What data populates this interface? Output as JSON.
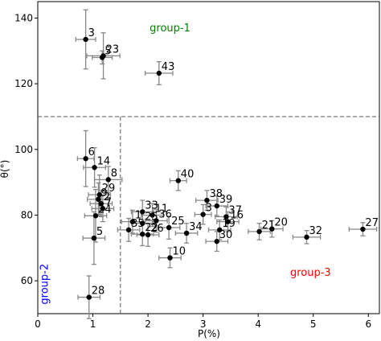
{
  "chart_data": {
    "type": "scatter",
    "xlabel": "P(%)",
    "ylabel": "θ(°)",
    "xlim": [
      0,
      6.2
    ],
    "ylim": [
      50,
      145
    ],
    "xticks": [
      0,
      1,
      2,
      3,
      4,
      5,
      6
    ],
    "yticks": [
      60,
      80,
      100,
      120,
      140
    ],
    "grid": false,
    "divider_lines": {
      "vertical_x": 1.5,
      "horizontal_y": 110
    },
    "group_labels": [
      {
        "text": "group-1",
        "color": "#008000",
        "x": 2.4,
        "y": 136
      },
      {
        "text": "group-2",
        "color": "#0000ff",
        "x": 0.18,
        "y": 59,
        "rotated": true
      },
      {
        "text": "group-3",
        "color": "#ff0000",
        "x": 4.95,
        "y": 61.5
      }
    ],
    "points": [
      {
        "label": "3",
        "x": 0.87,
        "y": 133.5,
        "xerr": 0.18,
        "yerr": 9.0
      },
      {
        "label": "23",
        "x": 1.19,
        "y": 128.5,
        "xerr": 0.3,
        "yerr": 7.0
      },
      {
        "label": "5",
        "x": 1.17,
        "y": 128.0,
        "xerr": 0.18,
        "yerr": 2.0
      },
      {
        "label": "43",
        "x": 2.2,
        "y": 123.2,
        "xerr": 0.25,
        "yerr": 3.5
      },
      {
        "label": "6",
        "x": 0.87,
        "y": 97.2,
        "xerr": 0.15,
        "yerr": 8.5
      },
      {
        "label": "14",
        "x": 1.03,
        "y": 94.5,
        "xerr": 0.2,
        "yerr": 6.0
      },
      {
        "label": "8",
        "x": 1.28,
        "y": 90.8,
        "xerr": 0.25,
        "yerr": 4.0
      },
      {
        "label": "40",
        "x": 2.55,
        "y": 90.5,
        "xerr": 0.15,
        "yerr": 3.0
      },
      {
        "label": "29",
        "x": 1.12,
        "y": 86.2,
        "xerr": 0.2,
        "yerr": 6.0
      },
      {
        "label": "9",
        "x": 1.1,
        "y": 84.8,
        "xerr": 0.2,
        "yerr": 5.0
      },
      {
        "label": "2",
        "x": 1.15,
        "y": 83.5,
        "xerr": 0.2,
        "yerr": 4.0
      },
      {
        "label": "7",
        "x": 1.18,
        "y": 82.0,
        "xerr": 0.2,
        "yerr": 4.0
      },
      {
        "label": "24",
        "x": 1.05,
        "y": 79.8,
        "xerr": 0.2,
        "yerr": 8.0
      },
      {
        "label": "5",
        "x": 1.02,
        "y": 73.0,
        "xerr": 0.2,
        "yerr": 8.0
      },
      {
        "label": "28",
        "x": 0.93,
        "y": 55.0,
        "xerr": 0.2,
        "yerr": 6.5
      },
      {
        "label": "38",
        "x": 3.07,
        "y": 84.5,
        "xerr": 0.2,
        "yerr": 3.0
      },
      {
        "label": "39",
        "x": 3.25,
        "y": 82.8,
        "xerr": 0.2,
        "yerr": 3.0
      },
      {
        "label": "3",
        "x": 3.0,
        "y": 80.2,
        "xerr": 0.15,
        "yerr": 3.0
      },
      {
        "label": "37",
        "x": 3.42,
        "y": 79.5,
        "xerr": 0.2,
        "yerr": 3.0
      },
      {
        "label": "16",
        "x": 3.45,
        "y": 78.0,
        "xerr": 0.2,
        "yerr": 3.0
      },
      {
        "label": "19",
        "x": 3.3,
        "y": 75.5,
        "xerr": 0.2,
        "yerr": 3.0
      },
      {
        "label": "30",
        "x": 3.25,
        "y": 72.0,
        "xerr": 0.2,
        "yerr": 3.0
      },
      {
        "label": "33",
        "x": 1.9,
        "y": 81.0,
        "xerr": 0.2,
        "yerr": 3.5
      },
      {
        "label": "11",
        "x": 2.08,
        "y": 80.0,
        "xerr": 0.2,
        "yerr": 3.5
      },
      {
        "label": "1",
        "x": 1.72,
        "y": 78.0,
        "xerr": 0.2,
        "yerr": 3.5
      },
      {
        "label": "36",
        "x": 2.15,
        "y": 78.3,
        "xerr": 0.2,
        "yerr": 3.5
      },
      {
        "label": "25",
        "x": 1.9,
        "y": 77.5,
        "xerr": 0.2,
        "yerr": 3.5
      },
      {
        "label": "25",
        "x": 2.38,
        "y": 76.2,
        "xerr": 0.2,
        "yerr": 3.5
      },
      {
        "label": "35",
        "x": 1.65,
        "y": 75.5,
        "xerr": 0.2,
        "yerr": 3.5
      },
      {
        "label": "22",
        "x": 1.9,
        "y": 74.2,
        "xerr": 0.2,
        "yerr": 3.5
      },
      {
        "label": "26",
        "x": 2.0,
        "y": 74.0,
        "xerr": 0.2,
        "yerr": 3.5
      },
      {
        "label": "34",
        "x": 2.7,
        "y": 74.5,
        "xerr": 0.2,
        "yerr": 3.0
      },
      {
        "label": "10",
        "x": 2.4,
        "y": 67.0,
        "xerr": 0.2,
        "yerr": 3.0
      },
      {
        "label": "21",
        "x": 4.02,
        "y": 75.0,
        "xerr": 0.2,
        "yerr": 2.5
      },
      {
        "label": "20",
        "x": 4.25,
        "y": 75.8,
        "xerr": 0.2,
        "yerr": 2.5
      },
      {
        "label": "32",
        "x": 4.88,
        "y": 73.3,
        "xerr": 0.25,
        "yerr": 2.0
      },
      {
        "label": "27",
        "x": 5.9,
        "y": 75.7,
        "xerr": 0.25,
        "yerr": 2.0
      }
    ]
  }
}
